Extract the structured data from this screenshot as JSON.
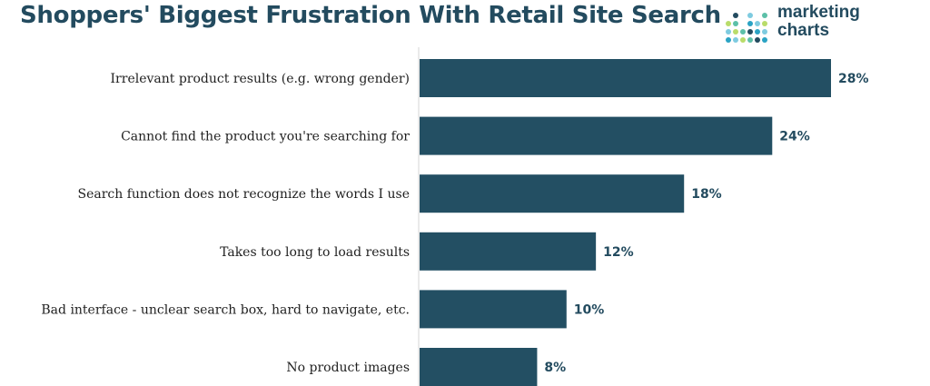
{
  "header": {
    "title": "Shoppers' Biggest Frustration With Retail Site Search"
  },
  "logo": {
    "line1": "marketing",
    "line2": "charts",
    "dot_colors": [
      "#2aa3c4",
      "#7ecbe0",
      "#b9dc6a",
      "#5cc0a8",
      "#234b5f"
    ]
  },
  "chart_data": {
    "type": "bar",
    "orientation": "horizontal",
    "categories": [
      "Irrelevant product results (e.g. wrong gender)",
      "Cannot find the product you're searching for",
      "Search function does not recognize the words I use",
      "Takes too long to load results",
      "Bad interface - unclear search box, hard to navigate, etc.",
      "No product images"
    ],
    "values": [
      28,
      24,
      18,
      12,
      10,
      8
    ],
    "value_labels": [
      "28%",
      "24%",
      "18%",
      "12%",
      "10%",
      "8%"
    ],
    "xlim": [
      0,
      28
    ],
    "grid": false,
    "bar_color": "#234f63"
  }
}
